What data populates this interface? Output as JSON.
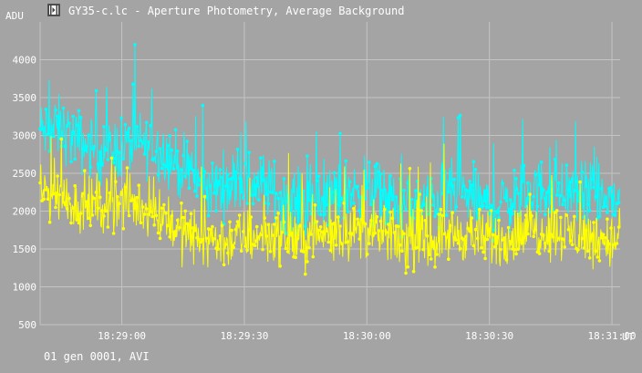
{
  "window": {
    "title": "GY35-c.lc - Aperture Photometry, Average Background",
    "icon": "film-frame-icon"
  },
  "axes": {
    "y_unit": "ADU",
    "x_unit": "UT",
    "footer": "01 gen 0001, AVI"
  },
  "colors": {
    "background": "#a4a4a4",
    "grid": "#c4c4c4",
    "series_cyan": "#00ffff",
    "series_yellow": "#ffff00",
    "text": "#ffffff"
  },
  "chart_data": {
    "type": "line",
    "title": "GY35-c.lc - Aperture Photometry, Average Background",
    "xlabel": "UT",
    "ylabel": "ADU",
    "ylim": [
      500,
      4500
    ],
    "yticks": [
      500,
      1000,
      1500,
      2000,
      2500,
      3000,
      3500,
      4000
    ],
    "xticks": [
      "18:29:00",
      "18:29:30",
      "18:30:00",
      "18:30:30",
      "18:31:00"
    ],
    "xlim_seconds_after_18_28_40": [
      0,
      142
    ],
    "grid": true,
    "markers": true,
    "series": [
      {
        "color": "#00ffff",
        "x": [
          0,
          5,
          10,
          15,
          20,
          25,
          30,
          35,
          40,
          45,
          50,
          55,
          60,
          65,
          70,
          75,
          80,
          85,
          90,
          95,
          100,
          105,
          110,
          115,
          120,
          125,
          130,
          135,
          140
        ],
        "values": [
          3050,
          3100,
          2900,
          2800,
          2850,
          2900,
          2800,
          2550,
          2300,
          2350,
          2400,
          2350,
          2150,
          2100,
          2150,
          2250,
          2300,
          2150,
          2050,
          2100,
          2250,
          2200,
          2050,
          2150,
          2250,
          2300,
          2250,
          2200,
          2150
        ],
        "spread": 450
      },
      {
        "color": "#ffff00",
        "x": [
          0,
          5,
          10,
          15,
          20,
          25,
          30,
          35,
          40,
          45,
          50,
          55,
          60,
          65,
          70,
          75,
          80,
          85,
          90,
          95,
          100,
          105,
          110,
          115,
          120,
          125,
          130,
          135,
          140
        ],
        "values": [
          2250,
          2200,
          2050,
          2100,
          2150,
          2050,
          1950,
          1700,
          1650,
          1600,
          1650,
          1700,
          1650,
          1650,
          1700,
          1750,
          1750,
          1650,
          1600,
          1600,
          1700,
          1700,
          1600,
          1650,
          1750,
          1750,
          1700,
          1650,
          1600
        ],
        "spread": 400
      }
    ]
  }
}
